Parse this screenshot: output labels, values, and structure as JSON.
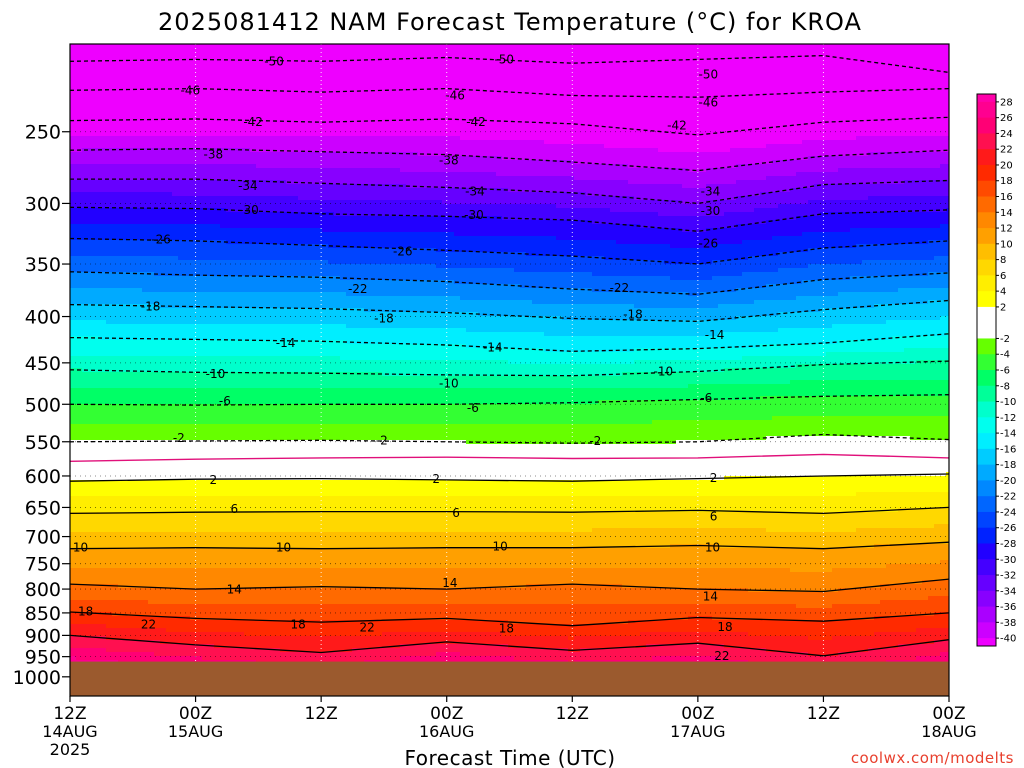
{
  "chart_data": {
    "type": "heatmap",
    "title": "2025081412 NAM Forecast Temperature (°C) for KROA",
    "xlabel": "Forecast Time (UTC)",
    "ylabel": "",
    "credit": "coolwx.com/modelts",
    "x_hours_range": [
      0,
      84
    ],
    "y_pressure_range": [
      200,
      1050
    ],
    "y_scale": "log-pressure",
    "x_ticks": [
      {
        "hour": 0,
        "label": "12Z",
        "date": "14AUG",
        "year": "2025"
      },
      {
        "hour": 12,
        "label": "00Z",
        "date": "15AUG",
        "year": ""
      },
      {
        "hour": 24,
        "label": "12Z",
        "date": "",
        "year": ""
      },
      {
        "hour": 36,
        "label": "00Z",
        "date": "16AUG",
        "year": ""
      },
      {
        "hour": 48,
        "label": "12Z",
        "date": "",
        "year": ""
      },
      {
        "hour": 60,
        "label": "00Z",
        "date": "17AUG",
        "year": ""
      },
      {
        "hour": 72,
        "label": "12Z",
        "date": "",
        "year": ""
      },
      {
        "hour": 84,
        "label": "00Z",
        "date": "18AUG",
        "year": ""
      }
    ],
    "y_ticks": [
      250,
      300,
      350,
      400,
      450,
      500,
      550,
      600,
      650,
      700,
      750,
      800,
      850,
      900,
      950,
      1000
    ],
    "surface_pressure_hpa": 962,
    "ground_color": "#9b5a2e",
    "colorbar": {
      "range": [
        -41,
        29
      ],
      "labels": [
        "28",
        "26",
        "24",
        "22",
        "20",
        "18",
        "16",
        "14",
        "12",
        "10",
        "8",
        "6",
        "4",
        "2",
        "-2",
        "-4",
        "-6",
        "-8",
        "-10",
        "-12",
        "-14",
        "-16",
        "-18",
        "-20",
        "-22",
        "-24",
        "-26",
        "-28",
        "-30",
        "-32",
        "-34",
        "-36",
        "-38",
        "-40"
      ],
      "bins": [
        {
          "lo": 28,
          "hi": 29,
          "color": "#ff00aa"
        },
        {
          "lo": 26,
          "hi": 28,
          "color": "#ff0090"
        },
        {
          "lo": 24,
          "hi": 26,
          "color": "#ff0075"
        },
        {
          "lo": 22,
          "hi": 24,
          "color": "#ff1050"
        },
        {
          "lo": 20,
          "hi": 22,
          "color": "#ff1a1a"
        },
        {
          "lo": 18,
          "hi": 20,
          "color": "#ff2a00"
        },
        {
          "lo": 16,
          "hi": 18,
          "color": "#ff4a00"
        },
        {
          "lo": 14,
          "hi": 16,
          "color": "#ff6a00"
        },
        {
          "lo": 12,
          "hi": 14,
          "color": "#ff8800"
        },
        {
          "lo": 10,
          "hi": 12,
          "color": "#ffa000"
        },
        {
          "lo": 8,
          "hi": 10,
          "color": "#ffbe00"
        },
        {
          "lo": 6,
          "hi": 8,
          "color": "#ffd800"
        },
        {
          "lo": 4,
          "hi": 6,
          "color": "#ffee00"
        },
        {
          "lo": 2,
          "hi": 4,
          "color": "#ffff00"
        },
        {
          "lo": -2,
          "hi": 2,
          "color": "#ffffff"
        },
        {
          "lo": -4,
          "hi": -2,
          "color": "#66ff00"
        },
        {
          "lo": -6,
          "hi": -4,
          "color": "#33ff33"
        },
        {
          "lo": -8,
          "hi": -6,
          "color": "#00ff66"
        },
        {
          "lo": -10,
          "hi": -8,
          "color": "#00ff99"
        },
        {
          "lo": -12,
          "hi": -10,
          "color": "#00ffcc"
        },
        {
          "lo": -14,
          "hi": -12,
          "color": "#00ffee"
        },
        {
          "lo": -16,
          "hi": -14,
          "color": "#00eeff"
        },
        {
          "lo": -18,
          "hi": -16,
          "color": "#00ccff"
        },
        {
          "lo": -20,
          "hi": -18,
          "color": "#00aaff"
        },
        {
          "lo": -22,
          "hi": -20,
          "color": "#0088ff"
        },
        {
          "lo": -24,
          "hi": -22,
          "color": "#0066ff"
        },
        {
          "lo": -26,
          "hi": -24,
          "color": "#0044ff"
        },
        {
          "lo": -28,
          "hi": -26,
          "color": "#0022ff"
        },
        {
          "lo": -30,
          "hi": -28,
          "color": "#2200ff"
        },
        {
          "lo": -32,
          "hi": -30,
          "color": "#4400ff"
        },
        {
          "lo": -34,
          "hi": -32,
          "color": "#6600ff"
        },
        {
          "lo": -36,
          "hi": -34,
          "color": "#8800ff"
        },
        {
          "lo": -38,
          "hi": -36,
          "color": "#aa00ff"
        },
        {
          "lo": -40,
          "hi": -38,
          "color": "#cc00ff"
        },
        {
          "lo": -41,
          "hi": -40,
          "color": "#ee00ff"
        }
      ]
    },
    "isotherms": [
      {
        "temp": -50,
        "p": [
          209,
          208,
          209,
          207,
          210,
          208,
          206,
          215
        ]
      },
      {
        "temp": -46,
        "p": [
          225,
          224,
          226,
          224,
          228,
          229,
          226,
          224
        ]
      },
      {
        "temp": -42,
        "p": [
          243,
          242,
          244,
          242,
          245,
          252,
          244,
          241
        ]
      },
      {
        "temp": -38,
        "p": [
          262,
          261,
          263,
          265,
          270,
          276,
          266,
          262
        ]
      },
      {
        "temp": -34,
        "p": [
          282,
          282,
          285,
          288,
          292,
          300,
          286,
          283
        ]
      },
      {
        "temp": -30,
        "p": [
          303,
          304,
          308,
          310,
          313,
          322,
          308,
          305
        ]
      },
      {
        "temp": -26,
        "p": [
          328,
          330,
          334,
          338,
          343,
          350,
          336,
          330
        ]
      },
      {
        "temp": -22,
        "p": [
          357,
          360,
          362,
          366,
          373,
          378,
          364,
          358
        ]
      },
      {
        "temp": -18,
        "p": [
          388,
          390,
          392,
          396,
          402,
          405,
          393,
          384
        ]
      },
      {
        "temp": -14,
        "p": [
          422,
          424,
          426,
          430,
          437,
          434,
          428,
          418
        ]
      },
      {
        "temp": -10,
        "p": [
          458,
          461,
          462,
          464,
          465,
          460,
          452,
          448
        ]
      },
      {
        "temp": -6,
        "p": [
          500,
          501,
          500,
          500,
          498,
          494,
          490,
          488
        ]
      },
      {
        "temp": -2,
        "p": [
          550,
          549,
          548,
          550,
          552,
          550,
          540,
          547
        ]
      },
      {
        "temp": 0,
        "p": [
          578,
          575,
          573,
          572,
          574,
          573,
          568,
          573
        ]
      },
      {
        "temp": 2,
        "p": [
          608,
          605,
          604,
          606,
          608,
          604,
          600,
          597
        ]
      },
      {
        "temp": 6,
        "p": [
          660,
          658,
          657,
          657,
          658,
          655,
          660,
          650
        ]
      },
      {
        "temp": 10,
        "p": [
          722,
          720,
          722,
          720,
          720,
          716,
          722,
          710
        ]
      },
      {
        "temp": 14,
        "p": [
          790,
          800,
          795,
          800,
          790,
          800,
          805,
          780
        ]
      },
      {
        "temp": 18,
        "p": [
          848,
          862,
          870,
          862,
          878,
          860,
          868,
          850
        ]
      },
      {
        "temp": 22,
        "p": [
          900,
          922,
          940,
          915,
          935,
          918,
          948,
          910
        ]
      }
    ],
    "contour_labels": [
      {
        "text": "-50",
        "hour": 19.5,
        "p": 209
      },
      {
        "text": "-50",
        "hour": 41.5,
        "p": 208
      },
      {
        "text": "-50",
        "hour": 61,
        "p": 216
      },
      {
        "text": "-46",
        "hour": 11.5,
        "p": 225
      },
      {
        "text": "-46",
        "hour": 36.8,
        "p": 228
      },
      {
        "text": "-46",
        "hour": 61,
        "p": 232
      },
      {
        "text": "-42",
        "hour": 17.5,
        "p": 244
      },
      {
        "text": "-42",
        "hour": 38.8,
        "p": 244
      },
      {
        "text": "-42",
        "hour": 58,
        "p": 246
      },
      {
        "text": "-38",
        "hour": 13.7,
        "p": 265
      },
      {
        "text": "-38",
        "hour": 36.2,
        "p": 269
      },
      {
        "text": "-34",
        "hour": 17,
        "p": 287
      },
      {
        "text": "-34",
        "hour": 38.7,
        "p": 291
      },
      {
        "text": "-34",
        "hour": 61.2,
        "p": 291
      },
      {
        "text": "-30",
        "hour": 17.1,
        "p": 305
      },
      {
        "text": "-30",
        "hour": 38.6,
        "p": 309
      },
      {
        "text": "-30",
        "hour": 61.2,
        "p": 306
      },
      {
        "text": "-26",
        "hour": 8.7,
        "p": 329
      },
      {
        "text": "-26",
        "hour": 31.8,
        "p": 339
      },
      {
        "text": "-26",
        "hour": 61,
        "p": 332
      },
      {
        "text": "-22",
        "hour": 27.5,
        "p": 373
      },
      {
        "text": "-22",
        "hour": 52.5,
        "p": 372
      },
      {
        "text": "-18",
        "hour": 7.7,
        "p": 390
      },
      {
        "text": "-18",
        "hour": 30,
        "p": 402
      },
      {
        "text": "-18",
        "hour": 53.8,
        "p": 398
      },
      {
        "text": "-14",
        "hour": 20.6,
        "p": 428
      },
      {
        "text": "-14",
        "hour": 40.4,
        "p": 433
      },
      {
        "text": "-14",
        "hour": 61.6,
        "p": 419
      },
      {
        "text": "-10",
        "hour": 13.9,
        "p": 463
      },
      {
        "text": "-10",
        "hour": 36.2,
        "p": 474
      },
      {
        "text": "-10",
        "hour": 56.7,
        "p": 460
      },
      {
        "text": "-6",
        "hour": 14.8,
        "p": 496
      },
      {
        "text": "-6",
        "hour": 38.5,
        "p": 505
      },
      {
        "text": "-6",
        "hour": 60.8,
        "p": 492
      },
      {
        "text": "-2",
        "hour": 10.4,
        "p": 545
      },
      {
        "text": "-2",
        "hour": 29.8,
        "p": 548
      },
      {
        "text": "-2",
        "hour": 50.2,
        "p": 549
      },
      {
        "text": "2",
        "hour": 13.7,
        "p": 606
      },
      {
        "text": "2",
        "hour": 35,
        "p": 605
      },
      {
        "text": "2",
        "hour": 61.5,
        "p": 603
      },
      {
        "text": "6",
        "hour": 15.7,
        "p": 653
      },
      {
        "text": "6",
        "hour": 36.9,
        "p": 659
      },
      {
        "text": "6",
        "hour": 61.5,
        "p": 665
      },
      {
        "text": "10",
        "hour": 1.0,
        "p": 720
      },
      {
        "text": "10",
        "hour": 20.4,
        "p": 720
      },
      {
        "text": "10",
        "hour": 41.1,
        "p": 718
      },
      {
        "text": "10",
        "hour": 61.4,
        "p": 720
      },
      {
        "text": "14",
        "hour": 15.7,
        "p": 801
      },
      {
        "text": "14",
        "hour": 36.3,
        "p": 788
      },
      {
        "text": "14",
        "hour": 61.2,
        "p": 815
      },
      {
        "text": "18",
        "hour": 1.5,
        "p": 847
      },
      {
        "text": "18",
        "hour": 21.8,
        "p": 875
      },
      {
        "text": "18",
        "hour": 41.7,
        "p": 884
      },
      {
        "text": "18",
        "hour": 62.6,
        "p": 881
      },
      {
        "text": "22",
        "hour": 7.5,
        "p": 875
      },
      {
        "text": "22",
        "hour": 28.4,
        "p": 882
      },
      {
        "text": "22",
        "hour": 62.3,
        "p": 948
      }
    ]
  }
}
